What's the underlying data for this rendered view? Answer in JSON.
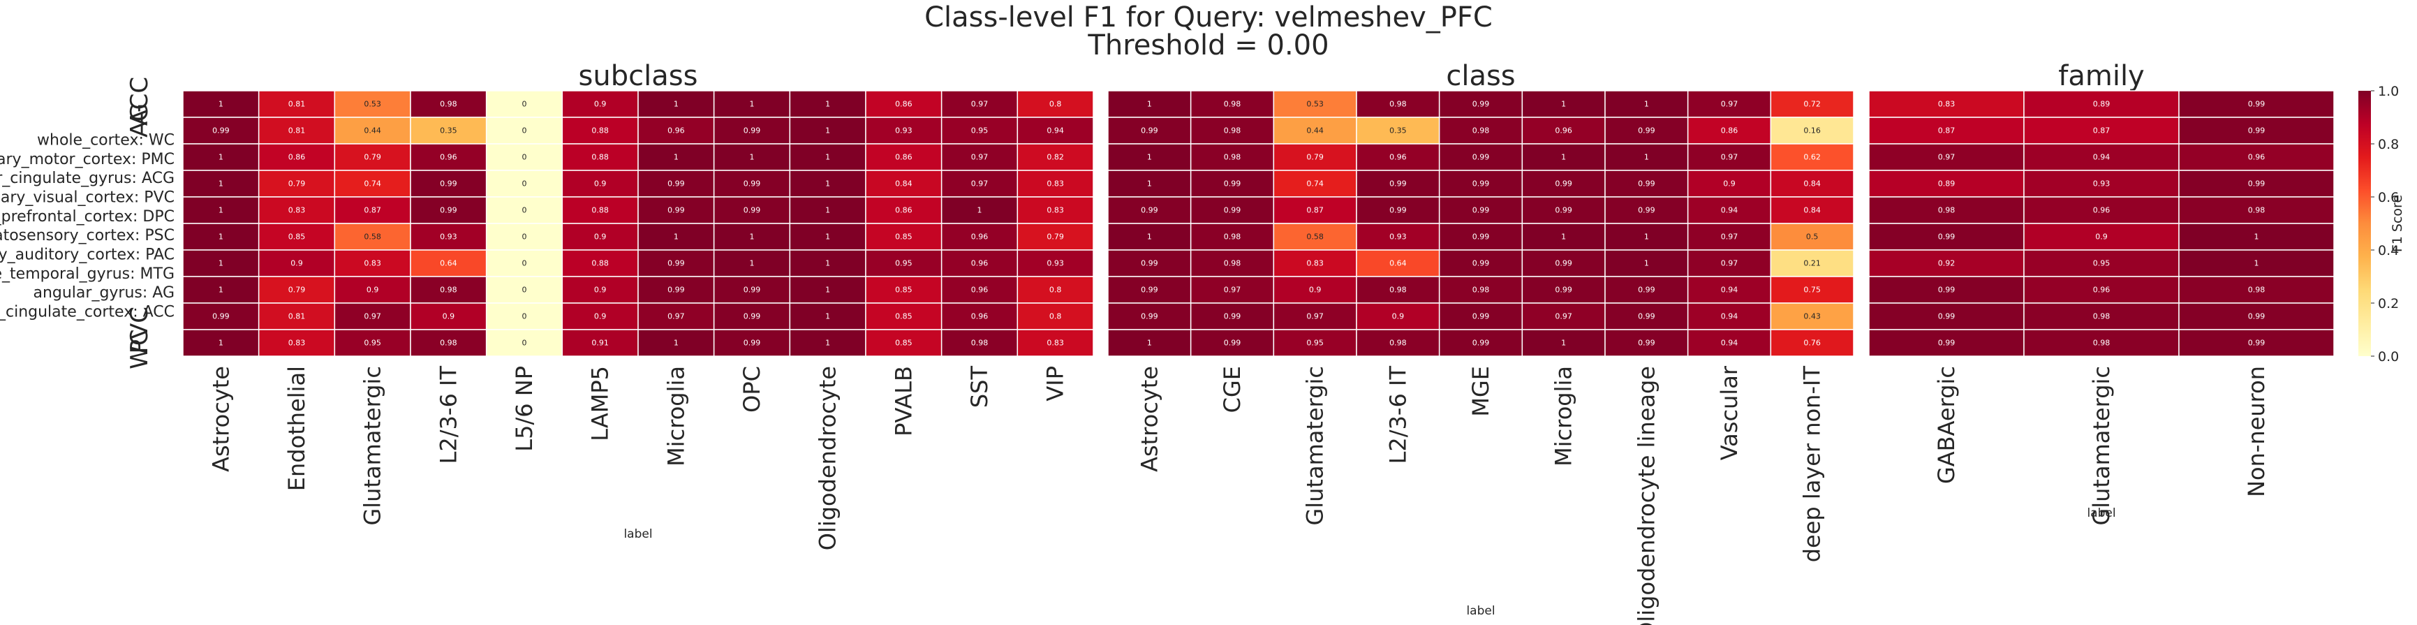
{
  "title_line1": "Class-level F1 for Query: velmeshev_PFC",
  "title_line2": "Threshold = 0.00",
  "colorbar": {
    "label": "F1 Score",
    "ticks": [
      "0.0",
      "0.2",
      "0.4",
      "0.6",
      "0.8",
      "1.0"
    ],
    "colors": [
      "#ffffcc",
      "#ffeda0",
      "#fed976",
      "#feb24c",
      "#fd8d3c",
      "#fc4e2a",
      "#e31a1c",
      "#bd0026",
      "#800026"
    ]
  },
  "row_labels": [
    {
      "type": "group",
      "text": "ACC"
    },
    {
      "type": "group",
      "text": "AG"
    },
    {
      "type": "label",
      "text": "whole_cortex: WC"
    },
    {
      "type": "label",
      "text": "primary_motor_cortex: PMC"
    },
    {
      "type": "label",
      "text": "anterior_cingulate_gyrus: ACG"
    },
    {
      "type": "label",
      "text": "primary_visual_cortex: PVC"
    },
    {
      "type": "label",
      "text": "dorsolateral_prefrontal_cortex: DPC"
    },
    {
      "type": "label",
      "text": "primary_somatosensory_cortex: PSC"
    },
    {
      "type": "label",
      "text": "primary_auditory_cortex: PAC"
    },
    {
      "type": "label",
      "text": "middle_temporal_gyrus: MTG"
    },
    {
      "type": "label",
      "text": "angular_gyrus: AG"
    },
    {
      "type": "label",
      "text": "anterior_cingulate_cortex: ACC"
    },
    {
      "type": "group",
      "text": "PVC"
    },
    {
      "type": "group",
      "text": "WC"
    }
  ],
  "chart_data": [
    {
      "type": "heatmap",
      "title": "subclass",
      "xlabel": "label",
      "columns": [
        "Astrocyte",
        "Endothelial",
        "Glutamatergic",
        "L2/3-6 IT",
        "L5/6 NP",
        "LAMP5",
        "Microglia",
        "OPC",
        "Oligodendrocyte",
        "PVALB",
        "SST",
        "VIP"
      ],
      "values": [
        [
          1,
          0.81,
          0.53,
          0.98,
          0,
          0.9,
          1,
          1,
          1,
          0.86,
          0.97,
          0.8
        ],
        [
          0.99,
          0.81,
          0.44,
          0.35,
          0,
          0.88,
          0.96,
          0.99,
          1,
          0.93,
          0.95,
          0.94
        ],
        [
          1,
          0.86,
          0.79,
          0.96,
          0,
          0.88,
          1,
          1,
          1,
          0.86,
          0.97,
          0.82
        ],
        [
          1,
          0.79,
          0.74,
          0.99,
          0,
          0.9,
          0.99,
          0.99,
          1,
          0.84,
          0.97,
          0.83
        ],
        [
          1,
          0.83,
          0.87,
          0.99,
          0,
          0.88,
          0.99,
          0.99,
          1,
          0.86,
          1,
          0.83
        ],
        [
          1,
          0.85,
          0.58,
          0.93,
          0,
          0.9,
          1,
          1,
          1,
          0.85,
          0.96,
          0.79
        ],
        [
          1,
          0.9,
          0.83,
          0.64,
          0,
          0.88,
          0.99,
          1,
          1,
          0.95,
          0.96,
          0.93
        ],
        [
          1,
          0.79,
          0.9,
          0.98,
          0,
          0.9,
          0.99,
          0.99,
          1,
          0.85,
          0.96,
          0.8
        ],
        [
          0.99,
          0.81,
          0.97,
          0.9,
          0,
          0.9,
          0.97,
          0.99,
          1,
          0.85,
          0.96,
          0.8
        ],
        [
          1,
          0.83,
          0.95,
          0.98,
          0,
          0.91,
          1,
          0.99,
          1,
          0.85,
          0.98,
          0.83
        ]
      ]
    },
    {
      "type": "heatmap",
      "title": "class",
      "xlabel": "label",
      "columns": [
        "Astrocyte",
        "CGE",
        "Glutamatergic",
        "L2/3-6 IT",
        "MGE",
        "Microglia",
        "Oligodendrocyte lineage",
        "Vascular",
        "deep layer non-IT"
      ],
      "values": [
        [
          1,
          0.98,
          0.53,
          0.98,
          0.99,
          1,
          1,
          0.97,
          0.72
        ],
        [
          0.99,
          0.98,
          0.44,
          0.35,
          0.98,
          0.96,
          0.99,
          0.86,
          0.16
        ],
        [
          1,
          0.98,
          0.79,
          0.96,
          0.99,
          1,
          1,
          0.97,
          0.62
        ],
        [
          1,
          0.99,
          0.74,
          0.99,
          0.99,
          0.99,
          0.99,
          0.9,
          0.84
        ],
        [
          0.99,
          0.99,
          0.87,
          0.99,
          0.99,
          0.99,
          0.99,
          0.94,
          0.84
        ],
        [
          1,
          0.98,
          0.58,
          0.93,
          0.99,
          1,
          1,
          0.97,
          0.5
        ],
        [
          0.99,
          0.98,
          0.83,
          0.64,
          0.99,
          0.99,
          1,
          0.97,
          0.21
        ],
        [
          0.99,
          0.97,
          0.9,
          0.98,
          0.98,
          0.99,
          0.99,
          0.94,
          0.75
        ],
        [
          0.99,
          0.99,
          0.97,
          0.9,
          0.99,
          0.97,
          0.99,
          0.94,
          0.43
        ],
        [
          1,
          0.99,
          0.95,
          0.98,
          0.99,
          1,
          0.99,
          0.94,
          0.76
        ]
      ]
    },
    {
      "type": "heatmap",
      "title": "family",
      "xlabel": "label",
      "columns": [
        "GABAergic",
        "Glutamatergic",
        "Non-neuron"
      ],
      "values": [
        [
          0.83,
          0.89,
          0.99
        ],
        [
          0.87,
          0.87,
          0.99
        ],
        [
          0.97,
          0.94,
          0.96
        ],
        [
          0.89,
          0.93,
          0.99
        ],
        [
          0.98,
          0.96,
          0.98
        ],
        [
          0.99,
          0.9,
          1
        ],
        [
          0.92,
          0.95,
          1
        ],
        [
          0.99,
          0.96,
          0.98
        ],
        [
          0.99,
          0.98,
          0.99
        ],
        [
          0.99,
          0.98,
          0.99
        ]
      ]
    }
  ]
}
